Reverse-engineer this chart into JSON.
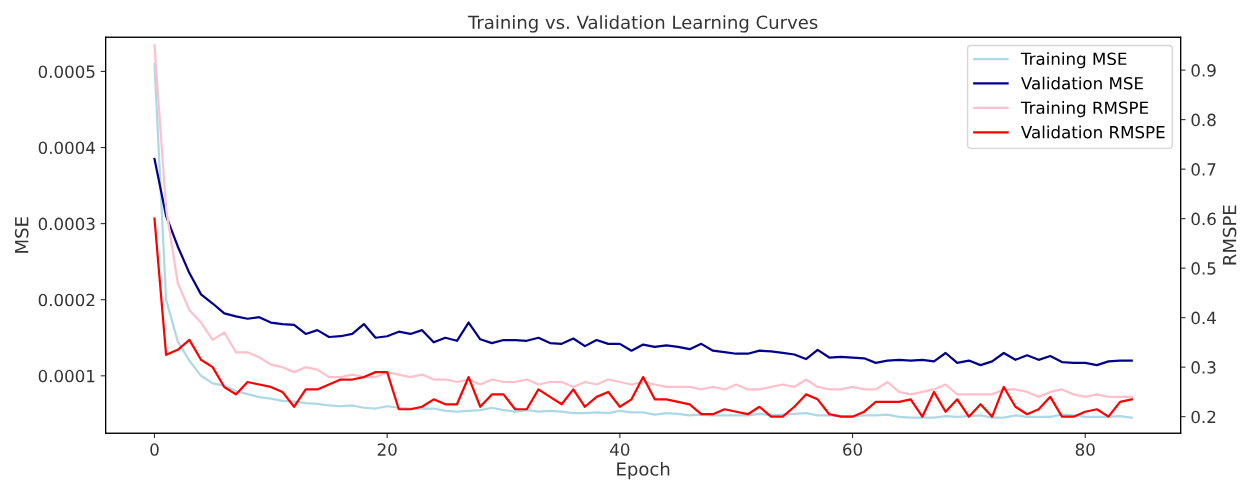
{
  "chart_data": {
    "type": "line",
    "title": "Training vs. Validation Learning Curves",
    "xlabel": "Epoch",
    "ylabel": "MSE",
    "y2label": "RMSPE",
    "x": [
      0,
      1,
      2,
      3,
      4,
      5,
      6,
      7,
      8,
      9,
      10,
      11,
      12,
      13,
      14,
      15,
      16,
      17,
      18,
      19,
      20,
      21,
      22,
      23,
      24,
      25,
      26,
      27,
      28,
      29,
      30,
      31,
      32,
      33,
      34,
      35,
      36,
      37,
      38,
      39,
      40,
      41,
      42,
      43,
      44,
      45,
      46,
      47,
      48,
      49,
      50,
      51,
      52,
      53,
      54,
      55,
      56,
      57,
      58,
      59,
      60,
      61,
      62,
      63,
      64,
      65,
      66,
      67,
      68,
      69,
      70,
      71,
      72,
      73,
      74,
      75,
      76,
      77,
      78,
      79,
      80,
      81,
      82,
      83,
      84
    ],
    "series": [
      {
        "name": "Training MSE",
        "color": "#add8e6",
        "values": [
          0.00051,
          0.0002,
          0.000145,
          0.00012,
          0.0001,
          9e-05,
          8.7e-05,
          8e-05,
          7.6e-05,
          7.2e-05,
          7e-05,
          6.7e-05,
          6.6e-05,
          6.4e-05,
          6.3e-05,
          6.1e-05,
          6e-05,
          6.1e-05,
          5.8e-05,
          5.7e-05,
          6e-05,
          5.8e-05,
          5.7e-05,
          5.7e-05,
          5.7e-05,
          5.4e-05,
          5.3e-05,
          5.4e-05,
          5.5e-05,
          5.8e-05,
          5.5e-05,
          5.3e-05,
          5.5e-05,
          5.3e-05,
          5.4e-05,
          5.3e-05,
          5.1e-05,
          5.1e-05,
          5.2e-05,
          5.1e-05,
          5.4e-05,
          5.2e-05,
          5.2e-05,
          4.9e-05,
          5.1e-05,
          5e-05,
          4.8e-05,
          4.9e-05,
          4.8e-05,
          4.8e-05,
          4.8e-05,
          4.8e-05,
          5e-05,
          4.8e-05,
          4.9e-05,
          5e-05,
          5.1e-05,
          4.8e-05,
          4.8e-05,
          4.7e-05,
          4.7e-05,
          4.8e-05,
          4.8e-05,
          4.9e-05,
          4.6e-05,
          4.5e-05,
          4.5e-05,
          4.5e-05,
          4.7e-05,
          4.6e-05,
          4.7e-05,
          4.8e-05,
          4.5e-05,
          4.5e-05,
          4.8e-05,
          4.6e-05,
          4.6e-05,
          4.6e-05,
          4.9e-05,
          4.8e-05,
          4.6e-05,
          4.6e-05,
          4.6e-05,
          4.7e-05,
          4.5e-05
        ]
      },
      {
        "name": "Validation MSE",
        "color": "#00008b",
        "values": [
          0.000385,
          0.00031,
          0.00027,
          0.000235,
          0.000207,
          0.000195,
          0.000182,
          0.000178,
          0.000175,
          0.000177,
          0.00017,
          0.000168,
          0.000167,
          0.000155,
          0.00016,
          0.000151,
          0.000152,
          0.000155,
          0.000168,
          0.00015,
          0.000152,
          0.000158,
          0.000155,
          0.00016,
          0.000144,
          0.00015,
          0.000146,
          0.00017,
          0.000148,
          0.000143,
          0.000147,
          0.000147,
          0.000146,
          0.00015,
          0.000143,
          0.000142,
          0.000149,
          0.000139,
          0.000147,
          0.000142,
          0.000142,
          0.000133,
          0.000141,
          0.000138,
          0.00014,
          0.000138,
          0.000135,
          0.000142,
          0.000133,
          0.000131,
          0.000129,
          0.000129,
          0.000133,
          0.000132,
          0.00013,
          0.000128,
          0.000122,
          0.000134,
          0.000124,
          0.000125,
          0.000124,
          0.000123,
          0.000117,
          0.00012,
          0.000121,
          0.00012,
          0.000121,
          0.000119,
          0.00013,
          0.000117,
          0.00012,
          0.000114,
          0.000119,
          0.00013,
          0.000121,
          0.000127,
          0.000121,
          0.000126,
          0.000118,
          0.000117,
          0.000117,
          0.000114,
          0.000119,
          0.00012,
          0.00012
        ]
      },
      {
        "name": "Training RMSPE",
        "color": "#ffc0cb",
        "axis": "y2",
        "values": [
          0.95,
          0.62,
          0.47,
          0.415,
          0.39,
          0.355,
          0.37,
          0.33,
          0.33,
          0.32,
          0.305,
          0.3,
          0.29,
          0.3,
          0.295,
          0.28,
          0.28,
          0.285,
          0.28,
          0.28,
          0.29,
          0.285,
          0.28,
          0.285,
          0.275,
          0.275,
          0.27,
          0.275,
          0.265,
          0.275,
          0.27,
          0.27,
          0.275,
          0.265,
          0.27,
          0.27,
          0.26,
          0.27,
          0.265,
          0.275,
          0.27,
          0.265,
          0.27,
          0.265,
          0.26,
          0.26,
          0.26,
          0.255,
          0.26,
          0.255,
          0.265,
          0.255,
          0.255,
          0.26,
          0.265,
          0.26,
          0.275,
          0.26,
          0.255,
          0.255,
          0.26,
          0.255,
          0.255,
          0.27,
          0.25,
          0.245,
          0.25,
          0.255,
          0.265,
          0.245,
          0.245,
          0.245,
          0.245,
          0.255,
          0.255,
          0.25,
          0.24,
          0.25,
          0.255,
          0.245,
          0.24,
          0.245,
          0.24,
          0.24,
          0.24
        ]
      },
      {
        "name": "Validation RMSPE",
        "color": "#ff0000",
        "axis": "y2",
        "values": [
          0.6,
          0.325,
          0.335,
          0.355,
          0.315,
          0.3,
          0.26,
          0.245,
          0.27,
          0.265,
          0.26,
          0.25,
          0.22,
          0.255,
          0.255,
          0.265,
          0.275,
          0.275,
          0.28,
          0.29,
          0.29,
          0.215,
          0.215,
          0.22,
          0.235,
          0.225,
          0.225,
          0.28,
          0.22,
          0.245,
          0.245,
          0.215,
          0.215,
          0.255,
          0.24,
          0.225,
          0.255,
          0.22,
          0.24,
          0.25,
          0.22,
          0.235,
          0.28,
          0.235,
          0.235,
          0.23,
          0.225,
          0.205,
          0.205,
          0.215,
          0.21,
          0.205,
          0.22,
          0.2,
          0.2,
          0.22,
          0.245,
          0.235,
          0.205,
          0.2,
          0.2,
          0.21,
          0.23,
          0.23,
          0.23,
          0.235,
          0.2,
          0.25,
          0.21,
          0.235,
          0.2,
          0.225,
          0.2,
          0.26,
          0.22,
          0.205,
          0.215,
          0.24,
          0.2,
          0.2,
          0.21,
          0.215,
          0.2,
          0.23,
          0.235
        ]
      }
    ],
    "xlim": [
      -4.2,
      88.2
    ],
    "xticks": [
      0,
      20,
      40,
      60,
      80
    ],
    "ylim": [
      2.45e-05,
      0.000545
    ],
    "yticks": [
      0.0001,
      0.0002,
      0.0003,
      0.0004,
      0.0005
    ],
    "y2lim": [
      0.1665,
      0.9665
    ],
    "y2ticks": [
      0.2,
      0.3,
      0.4,
      0.5,
      0.6,
      0.7,
      0.8,
      0.9
    ],
    "grid": false,
    "legend": "top right",
    "marker": "none",
    "line_style": "solid"
  }
}
